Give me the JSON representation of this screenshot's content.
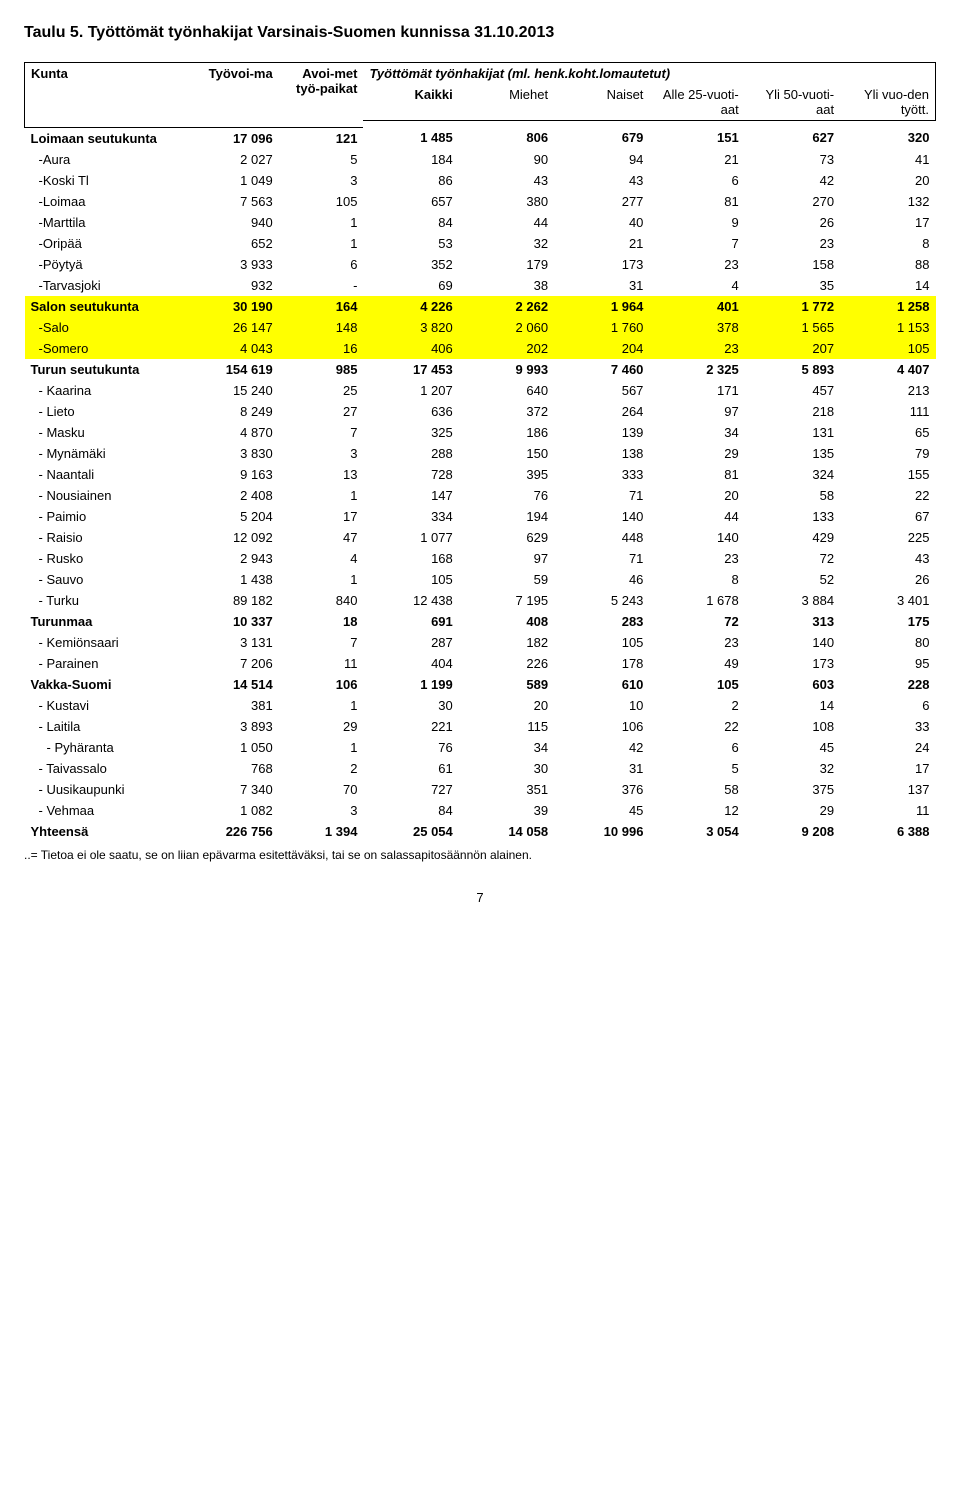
{
  "title": "Taulu 5. Työttömät työnhakijat Varsinais-Suomen kunnissa 31.10.2013",
  "header": {
    "kunta": "Kunta",
    "tyovoima": "Työvoi-ma",
    "avoimet": "Avoi-met työ-paikat",
    "tyottomat_caption": "Työttömät työnhakijat (ml. henk.koht.lomautetut)",
    "kaikki": "Kaikki",
    "miehet": "Miehet",
    "naiset": "Naiset",
    "alle25": "Alle 25-vuoti-aat",
    "yli50": "Yli 50-vuoti-aat",
    "ylivuoden": "Yli vuo-den tyött."
  },
  "footnote": "..= Tietoa ei ole saatu, se on liian epävarma esitettäväksi, tai se on salassapitosäännön alainen.",
  "pagenum": "7",
  "rows": [
    {
      "k": "sum",
      "label": "Loimaan seutukunta",
      "v": [
        "17 096",
        "121",
        "1 485",
        "806",
        "679",
        "151",
        "627",
        "320"
      ]
    },
    {
      "k": "sub",
      "label": "-Aura",
      "v": [
        "2 027",
        "5",
        "184",
        "90",
        "94",
        "21",
        "73",
        "41"
      ]
    },
    {
      "k": "sub",
      "label": "-Koski Tl",
      "v": [
        "1 049",
        "3",
        "86",
        "43",
        "43",
        "6",
        "42",
        "20"
      ]
    },
    {
      "k": "sub",
      "label": "-Loimaa",
      "v": [
        "7 563",
        "105",
        "657",
        "380",
        "277",
        "81",
        "270",
        "132"
      ]
    },
    {
      "k": "sub",
      "label": "-Marttila",
      "v": [
        "940",
        "1",
        "84",
        "44",
        "40",
        "9",
        "26",
        "17"
      ]
    },
    {
      "k": "sub",
      "label": "-Oripää",
      "v": [
        "652",
        "1",
        "53",
        "32",
        "21",
        "7",
        "23",
        "8"
      ]
    },
    {
      "k": "sub",
      "label": "-Pöytyä",
      "v": [
        "3 933",
        "6",
        "352",
        "179",
        "173",
        "23",
        "158",
        "88"
      ]
    },
    {
      "k": "sub",
      "label": "-Tarvasjoki",
      "v": [
        "932",
        "-",
        "69",
        "38",
        "31",
        "4",
        "35",
        "14"
      ]
    },
    {
      "k": "sum-hl",
      "label": "Salon seutukunta",
      "v": [
        "30 190",
        "164",
        "4 226",
        "2 262",
        "1 964",
        "401",
        "1 772",
        "1 258"
      ]
    },
    {
      "k": "sub-hl",
      "label": "-Salo",
      "v": [
        "26 147",
        "148",
        "3 820",
        "2 060",
        "1 760",
        "378",
        "1 565",
        "1 153"
      ]
    },
    {
      "k": "sub-hl",
      "label": "-Somero",
      "v": [
        "4 043",
        "16",
        "406",
        "202",
        "204",
        "23",
        "207",
        "105"
      ]
    },
    {
      "k": "sum",
      "label": "Turun seutukunta",
      "v": [
        "154 619",
        "985",
        "17 453",
        "9 993",
        "7 460",
        "2 325",
        "5 893",
        "4 407"
      ]
    },
    {
      "k": "sub",
      "label": "- Kaarina",
      "v": [
        "15 240",
        "25",
        "1 207",
        "640",
        "567",
        "171",
        "457",
        "213"
      ]
    },
    {
      "k": "sub",
      "label": "- Lieto",
      "v": [
        "8 249",
        "27",
        "636",
        "372",
        "264",
        "97",
        "218",
        "111"
      ]
    },
    {
      "k": "sub",
      "label": "- Masku",
      "v": [
        "4 870",
        "7",
        "325",
        "186",
        "139",
        "34",
        "131",
        "65"
      ]
    },
    {
      "k": "sub",
      "label": "- Mynämäki",
      "v": [
        "3 830",
        "3",
        "288",
        "150",
        "138",
        "29",
        "135",
        "79"
      ]
    },
    {
      "k": "sub",
      "label": "- Naantali",
      "v": [
        "9 163",
        "13",
        "728",
        "395",
        "333",
        "81",
        "324",
        "155"
      ]
    },
    {
      "k": "sub",
      "label": "- Nousiainen",
      "v": [
        "2 408",
        "1",
        "147",
        "76",
        "71",
        "20",
        "58",
        "22"
      ]
    },
    {
      "k": "sub",
      "label": "- Paimio",
      "v": [
        "5 204",
        "17",
        "334",
        "194",
        "140",
        "44",
        "133",
        "67"
      ]
    },
    {
      "k": "sub",
      "label": "- Raisio",
      "v": [
        "12 092",
        "47",
        "1 077",
        "629",
        "448",
        "140",
        "429",
        "225"
      ]
    },
    {
      "k": "sub",
      "label": "- Rusko",
      "v": [
        "2 943",
        "4",
        "168",
        "97",
        "71",
        "23",
        "72",
        "43"
      ]
    },
    {
      "k": "sub",
      "label": "- Sauvo",
      "v": [
        "1 438",
        "1",
        "105",
        "59",
        "46",
        "8",
        "52",
        "26"
      ]
    },
    {
      "k": "sub",
      "label": "- Turku",
      "v": [
        "89 182",
        "840",
        "12 438",
        "7 195",
        "5 243",
        "1 678",
        "3 884",
        "3 401"
      ]
    },
    {
      "k": "sum",
      "label": "Turunmaa",
      "v": [
        "10 337",
        "18",
        "691",
        "408",
        "283",
        "72",
        "313",
        "175"
      ]
    },
    {
      "k": "sub",
      "label": "- Kemiönsaari",
      "v": [
        "3 131",
        "7",
        "287",
        "182",
        "105",
        "23",
        "140",
        "80"
      ]
    },
    {
      "k": "sub",
      "label": "- Parainen",
      "v": [
        "7 206",
        "11",
        "404",
        "226",
        "178",
        "49",
        "173",
        "95"
      ]
    },
    {
      "k": "sum",
      "label": "Vakka-Suomi",
      "v": [
        "14 514",
        "106",
        "1 199",
        "589",
        "610",
        "105",
        "603",
        "228"
      ]
    },
    {
      "k": "sub",
      "label": "- Kustavi",
      "v": [
        "381",
        "1",
        "30",
        "20",
        "10",
        "2",
        "14",
        "6"
      ]
    },
    {
      "k": "sub",
      "label": "- Laitila",
      "v": [
        "3 893",
        "29",
        "221",
        "115",
        "106",
        "22",
        "108",
        "33"
      ]
    },
    {
      "k": "sub2",
      "label": "- Pyhäranta",
      "v": [
        "1 050",
        "1",
        "76",
        "34",
        "42",
        "6",
        "45",
        "24"
      ]
    },
    {
      "k": "sub",
      "label": "- Taivassalo",
      "v": [
        "768",
        "2",
        "61",
        "30",
        "31",
        "5",
        "32",
        "17"
      ]
    },
    {
      "k": "sub",
      "label": "- Uusikaupunki",
      "v": [
        "7 340",
        "70",
        "727",
        "351",
        "376",
        "58",
        "375",
        "137"
      ]
    },
    {
      "k": "sub",
      "label": "- Vehmaa",
      "v": [
        "1 082",
        "3",
        "84",
        "39",
        "45",
        "12",
        "29",
        "11"
      ]
    },
    {
      "k": "sum",
      "label": "Yhteensä",
      "v": [
        "226 756",
        "1 394",
        "25 054",
        "14 058",
        "10 996",
        "3 054",
        "9 208",
        "6 388"
      ]
    }
  ],
  "style": {
    "highlight_bg": "#ffff00",
    "title_fontsize": 16,
    "body_fontsize": 13,
    "font_family": "Arial"
  }
}
